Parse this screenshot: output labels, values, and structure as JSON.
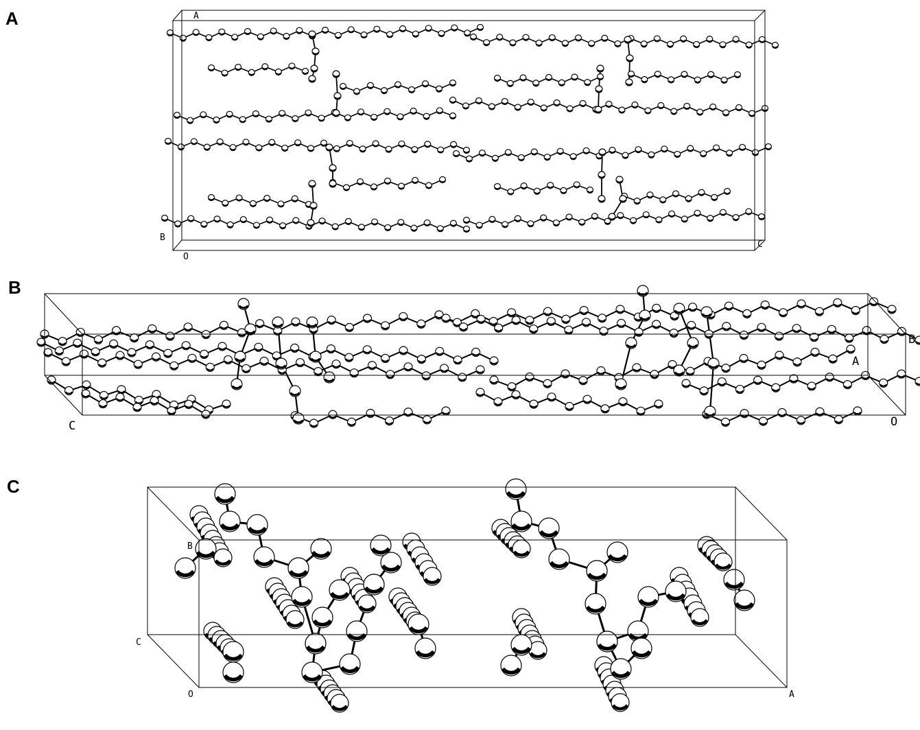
{
  "panels": [
    {
      "label": "A",
      "axis_labels": [
        "A",
        "B",
        "C",
        "O"
      ]
    },
    {
      "label": "B",
      "axis_labels": [
        "C",
        "B",
        "A",
        "O"
      ]
    },
    {
      "label": "C",
      "axis_labels": [
        "B",
        "C",
        "O",
        "A"
      ]
    }
  ]
}
